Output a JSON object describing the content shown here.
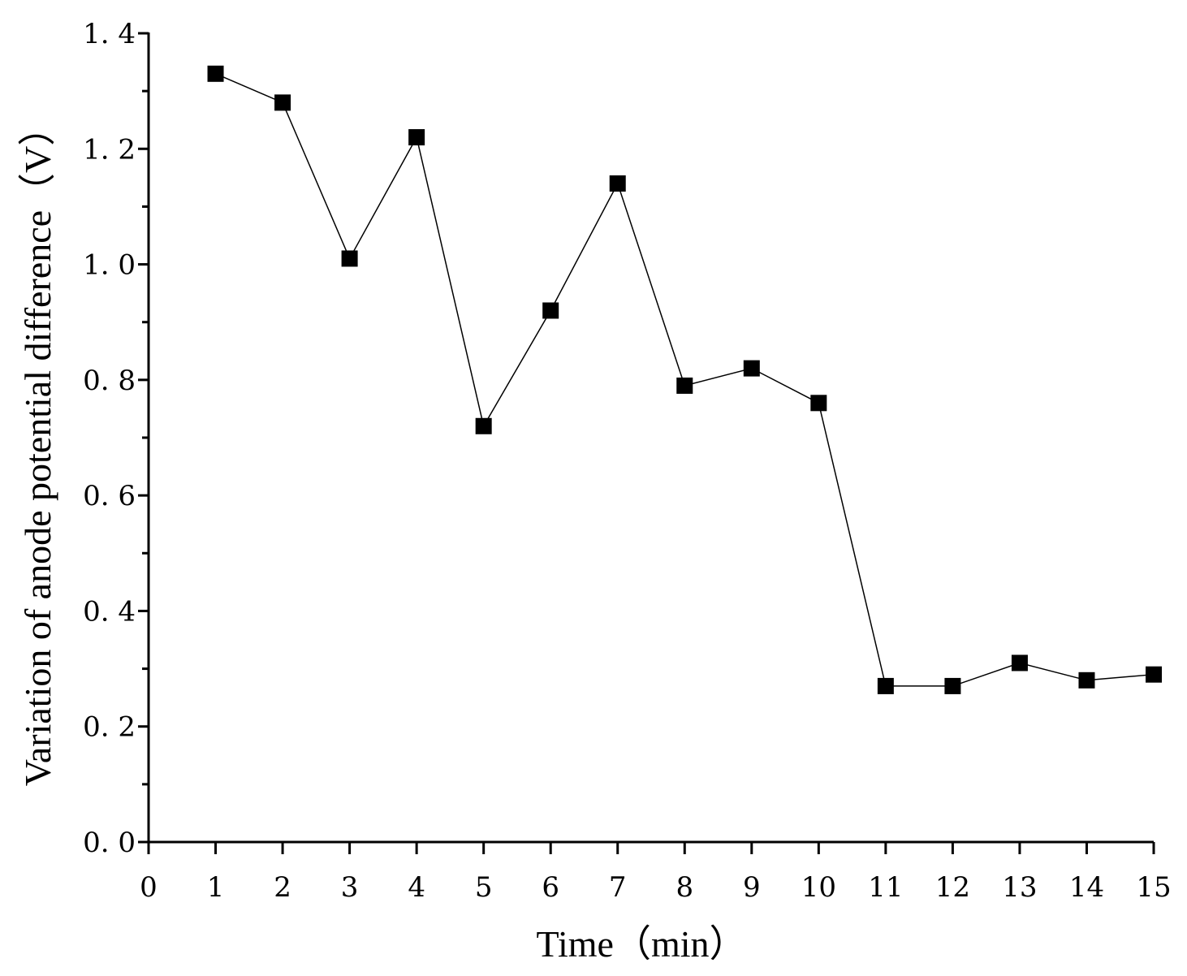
{
  "chart_data": {
    "type": "line",
    "title": "",
    "xlabel": "Time（min）",
    "ylabel": "Variation of anode potential difference（V）",
    "xlim": [
      0,
      15
    ],
    "ylim": [
      0.0,
      1.4
    ],
    "x_ticks": [
      0,
      1,
      2,
      3,
      4,
      5,
      6,
      7,
      8,
      9,
      10,
      11,
      12,
      13,
      14,
      15
    ],
    "x_tick_labels": [
      "0",
      "1",
      "2",
      "3",
      "4",
      "5",
      "6",
      "7",
      "8",
      "9",
      "10",
      "11",
      "12",
      "13",
      "14",
      "15"
    ],
    "y_ticks": [
      0.0,
      0.2,
      0.4,
      0.6,
      0.8,
      1.0,
      1.2,
      1.4
    ],
    "y_tick_labels": [
      "0. 0",
      "0. 2",
      "0. 4",
      "0. 6",
      "0. 8",
      "1. 0",
      "1. 2",
      "1. 4"
    ],
    "y_minor_ticks": [
      0.1,
      0.3,
      0.5,
      0.7,
      0.9,
      1.1,
      1.3
    ],
    "grid": false,
    "legend": "none",
    "series": [
      {
        "name": "anode potential difference",
        "marker": "square",
        "color": "#000000",
        "x": [
          1,
          2,
          3,
          4,
          5,
          6,
          7,
          8,
          9,
          10,
          11,
          12,
          13,
          14,
          15
        ],
        "values": [
          1.33,
          1.28,
          1.01,
          1.22,
          0.72,
          0.92,
          1.14,
          0.79,
          0.82,
          0.76,
          0.27,
          0.27,
          0.31,
          0.28,
          0.29
        ]
      }
    ]
  }
}
